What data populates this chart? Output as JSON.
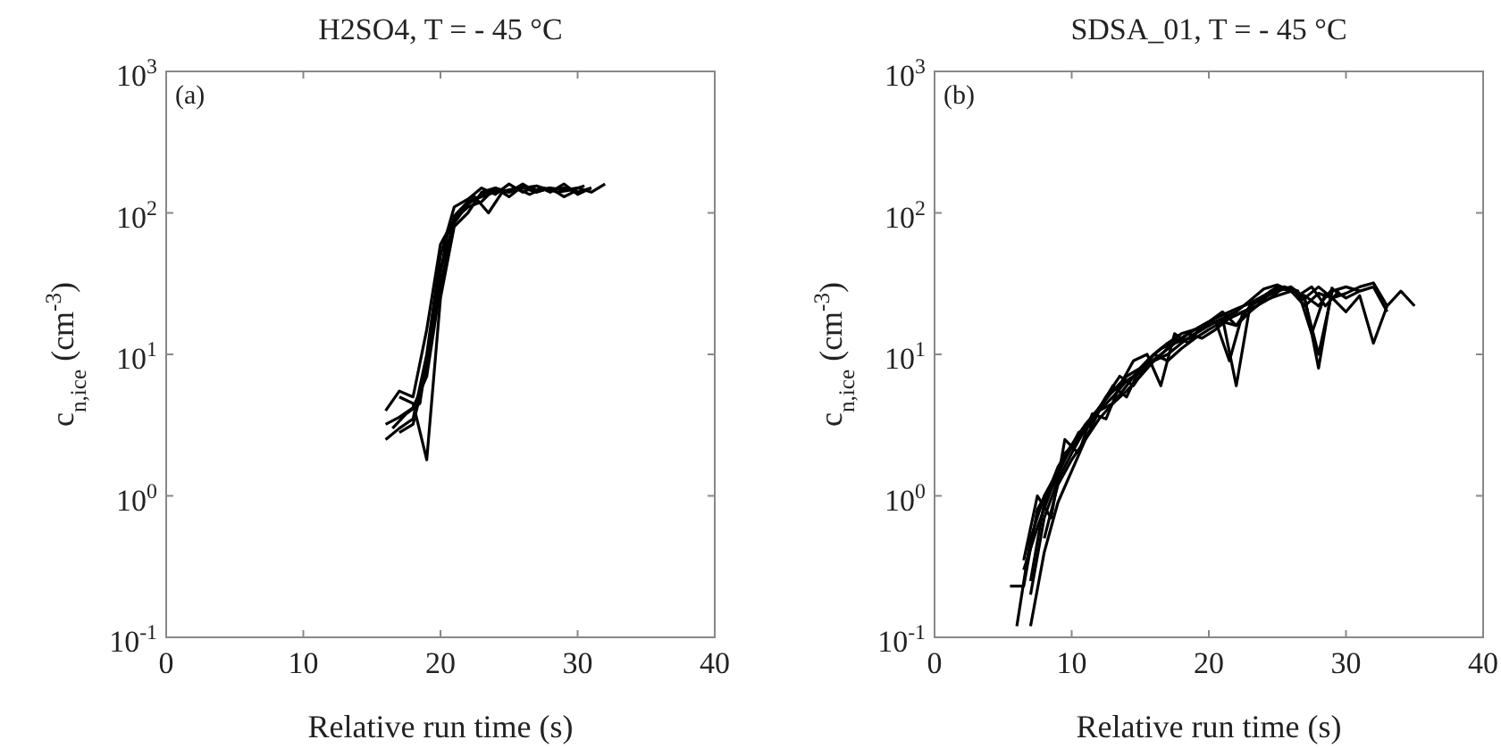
{
  "chart_data": [
    {
      "type": "line",
      "title": "H2SO4, T = - 45 °C",
      "xlabel": "Relative run time (s)",
      "ylabel": "c$_{n,ice}$ (cm$^{-3}$)",
      "annotations": [
        "(a)"
      ],
      "log": "y",
      "grid": false,
      "xlim": [
        0,
        40
      ],
      "xticks": [
        0,
        10,
        20,
        30,
        40
      ],
      "ylim": [
        0.1,
        1000
      ],
      "yticks": [
        {
          "value": 0.1,
          "label": "10$^{-1}$"
        },
        {
          "value": 1,
          "label": "10$^{0}$"
        },
        {
          "value": 10,
          "label": "10$^{1}$"
        },
        {
          "value": 100,
          "label": "10$^{2}$"
        },
        {
          "value": 1000,
          "label": "10$^{3}$"
        }
      ],
      "series": [
        {
          "color": "#000000",
          "x": [
            16,
            17,
            18,
            19,
            20,
            21,
            22,
            23,
            24,
            25,
            26,
            27,
            28,
            29,
            30,
            31,
            32
          ],
          "values": [
            3.2,
            3.6,
            4.2,
            7,
            30,
            95,
            120,
            130,
            140,
            145,
            150,
            140,
            150,
            145,
            150,
            140,
            160
          ]
        },
        {
          "color": "#000000",
          "x": [
            16,
            17,
            18,
            19,
            20,
            21,
            22,
            23,
            24,
            25,
            26,
            27,
            28,
            29,
            30,
            31
          ],
          "values": [
            2.5,
            3,
            3.5,
            10,
            50,
            110,
            125,
            150,
            135,
            160,
            140,
            155,
            140,
            160,
            135,
            150
          ]
        },
        {
          "color": "#000000",
          "x": [
            17,
            18,
            19,
            20,
            21,
            22,
            23,
            24,
            25,
            26,
            27,
            28,
            29,
            30
          ],
          "values": [
            5,
            4.5,
            1.8,
            25,
            80,
            100,
            140,
            150,
            130,
            155,
            145,
            150,
            130,
            145
          ]
        },
        {
          "color": "#000000",
          "x": [
            16,
            17,
            18,
            19,
            20,
            21,
            22,
            23,
            24,
            25,
            26,
            27,
            28
          ],
          "values": [
            4,
            5.5,
            5,
            15,
            60,
            90,
            110,
            120,
            150,
            140,
            160,
            140,
            150
          ]
        },
        {
          "color": "#000000",
          "x": [
            16.5,
            17.5,
            18.5,
            19.5,
            20.5,
            21.5,
            22.5,
            23.5,
            24.5,
            25.5,
            26.5,
            27.5,
            28.5,
            29.5,
            30.5
          ],
          "values": [
            3,
            3.8,
            4.5,
            20,
            70,
            105,
            130,
            100,
            140,
            150,
            135,
            150,
            140,
            145,
            155
          ]
        },
        {
          "color": "#000000",
          "x": [
            17,
            18,
            19,
            20,
            21,
            22,
            23,
            24,
            25,
            26,
            27,
            28,
            29,
            30,
            31
          ],
          "values": [
            2.8,
            3.2,
            8,
            40,
            85,
            115,
            135,
            145,
            140,
            150,
            155,
            145,
            150,
            140,
            150
          ]
        }
      ]
    },
    {
      "type": "line",
      "title": "SDSA_01, T = - 45 °C",
      "xlabel": "Relative run time (s)",
      "ylabel": "c$_{n,ice}$ (cm$^{-3}$)",
      "annotations": [
        "(b)"
      ],
      "log": "y",
      "grid": false,
      "xlim": [
        0,
        40
      ],
      "xticks": [
        0,
        10,
        20,
        30,
        40
      ],
      "ylim": [
        0.1,
        1000
      ],
      "yticks": [
        {
          "value": 0.1,
          "label": "10$^{-1}$"
        },
        {
          "value": 1,
          "label": "10$^{0}$"
        },
        {
          "value": 10,
          "label": "10$^{1}$"
        },
        {
          "value": 100,
          "label": "10$^{2}$"
        },
        {
          "value": 1000,
          "label": "10$^{3}$"
        }
      ],
      "series": [
        {
          "color": "#000000",
          "x": [
            5.5,
            6.5,
            7.5,
            8.5,
            9.5,
            10.5,
            11.5,
            12.5,
            13.5,
            14.5,
            15.5,
            16.5,
            17.5,
            18.5,
            19.5,
            20.5,
            21.5,
            22.5,
            23.5,
            24.5,
            25.5,
            26.5,
            27.5,
            28.5,
            29.5
          ],
          "values": [
            0.23,
            0.23,
            0.8,
            1.2,
            2,
            2.5,
            3.5,
            5,
            6,
            7,
            9,
            11,
            12,
            13,
            15,
            17,
            18,
            20,
            22,
            28,
            30,
            26,
            30,
            22,
            28
          ]
        },
        {
          "color": "#000000",
          "x": [
            6,
            7,
            8,
            9,
            10,
            11,
            12,
            13,
            14,
            15,
            16,
            17,
            18,
            19,
            20,
            21,
            22,
            23,
            24,
            25,
            26,
            27,
            28,
            29,
            30,
            31,
            32,
            33
          ],
          "values": [
            0.12,
            0.5,
            1,
            1.5,
            2.2,
            3,
            4,
            4.5,
            6,
            8,
            10,
            12,
            13,
            15,
            17,
            20,
            16,
            22,
            25,
            30,
            28,
            25,
            30,
            25,
            27,
            30,
            32,
            22
          ]
        },
        {
          "color": "#000000",
          "x": [
            6.5,
            7.5,
            8.5,
            9.5,
            10.5,
            11.5,
            12.5,
            13.5,
            14.5,
            15.5,
            16.5,
            17.5,
            18.5,
            19.5,
            20.5,
            21.5,
            22.5,
            23.5,
            24.5,
            25.5,
            26.5,
            27.5,
            28.5
          ],
          "values": [
            0.3,
            0.6,
            1.1,
            1.8,
            2.8,
            3.2,
            5,
            7,
            6,
            8.5,
            10,
            12,
            14,
            13,
            15,
            18,
            20,
            22,
            25,
            30,
            28,
            14,
            27
          ]
        },
        {
          "color": "#000000",
          "x": [
            7,
            8,
            9,
            10,
            11,
            12,
            13,
            14,
            15,
            16,
            17,
            18,
            19,
            20,
            21,
            22,
            23,
            24,
            25,
            26,
            27,
            28,
            29
          ],
          "values": [
            0.12,
            0.4,
            0.9,
            1.5,
            2.5,
            3.5,
            4.5,
            5.5,
            7,
            9,
            11,
            13,
            15,
            16,
            18,
            6,
            22,
            25,
            28,
            30,
            25,
            8,
            30
          ]
        },
        {
          "color": "#000000",
          "x": [
            7,
            8,
            9,
            10,
            11,
            12,
            13,
            14,
            15,
            16,
            17,
            18,
            19,
            20,
            21,
            22,
            23,
            24,
            25,
            26,
            27,
            28,
            29,
            30,
            31,
            32,
            33,
            34,
            35
          ],
          "values": [
            0.2,
            0.7,
            1.3,
            2,
            3,
            4,
            6,
            5,
            8,
            10,
            9,
            11,
            13,
            15,
            17,
            16,
            20,
            24,
            26,
            28,
            22,
            27,
            25,
            20,
            26,
            12,
            22,
            28,
            22
          ]
        },
        {
          "color": "#000000",
          "x": [
            6.5,
            7.5,
            8.5,
            9.5,
            10.5,
            11.5,
            12.5,
            13.5,
            14.5,
            15.5,
            16.5,
            17.5,
            18.5,
            19.5,
            20.5,
            21.5,
            22.5
          ],
          "values": [
            0.35,
            1,
            0.7,
            2.5,
            2,
            3.8,
            3.5,
            6,
            9,
            10,
            6,
            14,
            12,
            16,
            17,
            9,
            20
          ]
        },
        {
          "color": "#000000",
          "x": [
            8,
            9,
            10,
            11,
            12,
            13,
            14,
            15,
            16,
            17,
            18,
            19,
            20,
            21,
            22,
            23,
            24,
            25,
            26,
            27,
            28,
            29,
            30,
            31,
            32,
            33
          ],
          "values": [
            0.5,
            1.2,
            1.8,
            2.5,
            4,
            5,
            6.5,
            7.5,
            10,
            12,
            14,
            15,
            17,
            19,
            21,
            23,
            26,
            30,
            28,
            26,
            22,
            29,
            25,
            28,
            30,
            20
          ]
        },
        {
          "color": "#000000",
          "x": [
            7,
            8,
            9,
            10,
            11,
            12,
            13,
            14,
            15,
            16,
            17,
            18,
            19,
            20,
            21,
            22,
            23,
            24,
            25,
            26,
            27,
            28,
            29,
            30,
            31
          ],
          "values": [
            0.25,
            0.9,
            1.6,
            2.3,
            3.2,
            4.2,
            5.5,
            7,
            8,
            9,
            10,
            12,
            14,
            16,
            18,
            20,
            24,
            29,
            31,
            28,
            24,
            10,
            28,
            30,
            28
          ]
        }
      ]
    }
  ]
}
